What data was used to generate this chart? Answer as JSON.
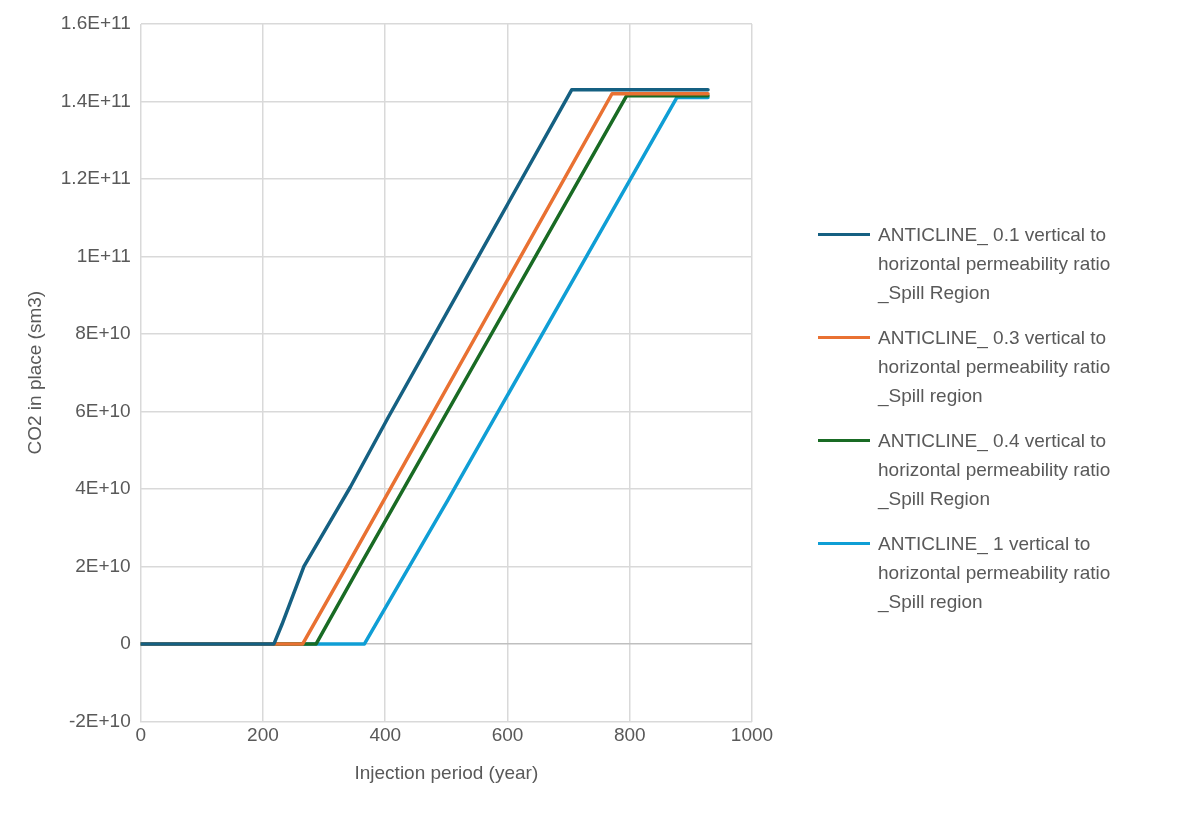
{
  "chart_data": {
    "type": "line",
    "xlabel": "Injection period (year)",
    "ylabel": "CO2 in place (sm3)",
    "xlim": [
      0,
      1000
    ],
    "xticks": [
      0,
      200,
      400,
      600,
      800,
      1000
    ],
    "ylim": [
      -20000000000,
      160000000000
    ],
    "yticks": [
      {
        "value": -20000000000,
        "label": "-2E+10"
      },
      0,
      {
        "value": 20000000000,
        "label": "2E+10"
      },
      {
        "value": 40000000000,
        "label": "4E+10"
      },
      {
        "value": 60000000000,
        "label": "6E+10"
      },
      {
        "value": 80000000000,
        "label": "8E+10"
      },
      {
        "value": 100000000000,
        "label": "1E+11"
      },
      {
        "value": 120000000000,
        "label": "1.2E+11"
      },
      {
        "value": 140000000000,
        "label": "1.4E+11"
      },
      {
        "value": 160000000000,
        "label": "1.6E+11"
      }
    ],
    "grid": true,
    "legend": "right",
    "marker": "none",
    "line_style": "solid",
    "series": [
      {
        "name": "ANTICLINE_ 0.1 vertical to horizontal permeability ratio _Spill Region",
        "color": "#156082",
        "x": [
          0,
          218,
          231,
          261,
          267,
          343,
          405,
          705,
          928
        ],
        "values": [
          0,
          0,
          5000000000,
          17500000000,
          20000000000,
          40500000000,
          58500000000,
          143000000000,
          143000000000
        ]
      },
      {
        "name": "ANTICLINE_ 0.3 vertical to horizontal permeability ratio _Spill region",
        "color": "#e97132",
        "x": [
          0,
          265,
          337,
          771,
          928
        ],
        "values": [
          0,
          0,
          20000000000,
          142000000000,
          142000000000
        ]
      },
      {
        "name": "ANTICLINE_ 0.4 vertical to horizontal permeability ratio _Spill Region",
        "color": "#196b24",
        "x": [
          0,
          287,
          358,
          795,
          928
        ],
        "values": [
          0,
          0,
          20000000000,
          141500000000,
          141500000000
        ]
      },
      {
        "name": "ANTICLINE_ 1 vertical to horizontal permeability ratio _Spill region",
        "color": "#0f9ed5",
        "x": [
          0,
          366,
          502,
          877,
          928
        ],
        "values": [
          0,
          0,
          37000000000,
          141000000000,
          141000000000
        ]
      }
    ]
  }
}
